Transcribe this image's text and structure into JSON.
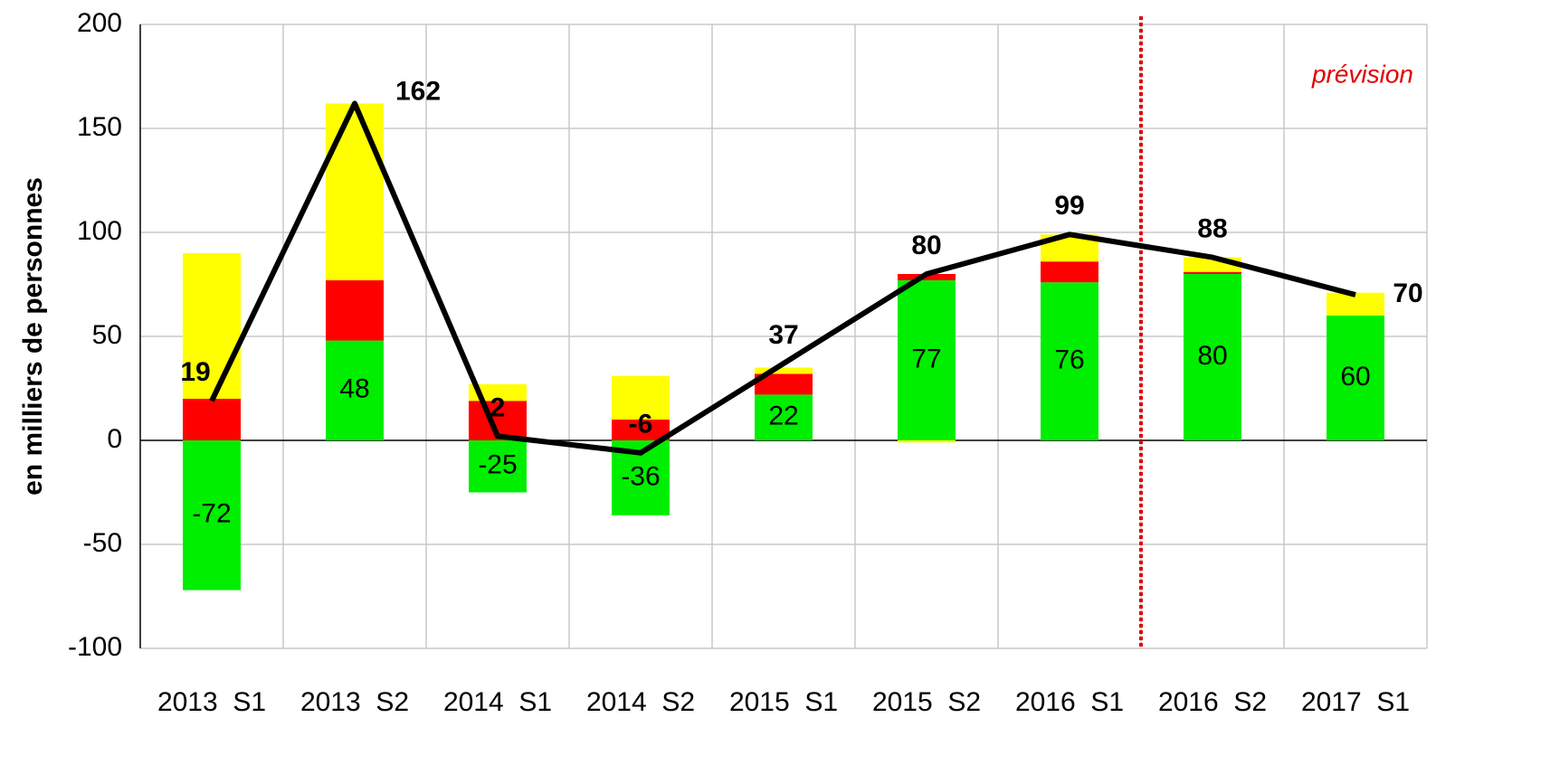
{
  "chart_data": {
    "type": "bar",
    "ylabel": "en milliers de personnes",
    "annotation": "prévision",
    "categories": [
      "2013  S1",
      "2013  S2",
      "2014  S1",
      "2014  S2",
      "2015  S1",
      "2015  S2",
      "2016  S1",
      "2016  S2",
      "2017  S1"
    ],
    "series": [
      {
        "color": "#00ee00",
        "values": [
          -72,
          48,
          -25,
          -36,
          22,
          77,
          76,
          80,
          60
        ]
      },
      {
        "color": "#ff0000",
        "values": [
          20,
          29,
          19,
          10,
          10,
          3,
          10,
          1,
          0
        ]
      },
      {
        "color": "#ffff00",
        "values": [
          70,
          85,
          8,
          21,
          3,
          -1,
          13,
          7,
          11
        ]
      }
    ],
    "line": {
      "color": "#000000",
      "values": [
        19,
        162,
        2,
        -6,
        37,
        80,
        99,
        88,
        70
      ]
    },
    "ylim": [
      -100,
      200
    ],
    "yticks": [
      -100,
      -50,
      0,
      50,
      100,
      150,
      200
    ],
    "grid": true
  }
}
